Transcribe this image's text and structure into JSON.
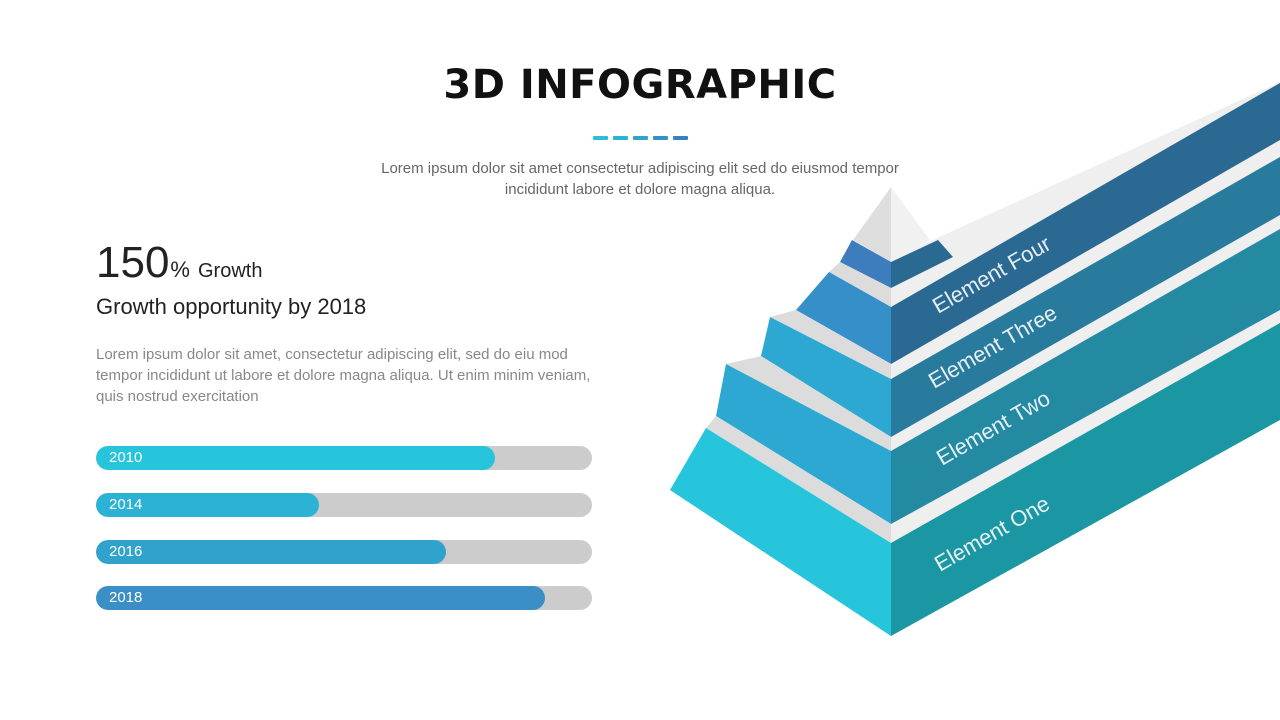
{
  "title": "3D INFOGRAPHIC",
  "subtitle_line1": "Lorem ipsum dolor sit amet consectetur adipiscing elit sed do eiusmod tempor",
  "subtitle_line2": "incididunt labore et dolore magna aliqua.",
  "stat": {
    "value": "150",
    "unit": "%",
    "label": "Growth"
  },
  "heading": "Growth opportunity by 2018",
  "body_text": "Lorem ipsum dolor sit amet, consectetur adipiscing elit, sed do eiu mod tempor incididunt ut labore et dolore magna aliqua. Ut enim minim veniam, quis nostrud exercitation",
  "bars": [
    {
      "year": "2010",
      "value": 0.805,
      "color": "#26C5DB"
    },
    {
      "year": "2014",
      "value": 0.45,
      "color": "#2BB2D5"
    },
    {
      "year": "2016",
      "value": 0.705,
      "color": "#2FA3CB"
    },
    {
      "year": "2018",
      "value": 0.905,
      "color": "#3A8FC6"
    }
  ],
  "elements": [
    {
      "label": "Element Four",
      "band_color": "#2A6A92",
      "left_color": "#3D7DBD"
    },
    {
      "label": "Element Three",
      "band_color": "#287B9C",
      "left_color": "#358FC8"
    },
    {
      "label": "Element Two",
      "band_color": "#238AA2",
      "left_color": "#2DA8D2"
    },
    {
      "label": "Element One",
      "band_color": "#1B97A3",
      "left_color": "#26C5DB"
    }
  ],
  "colors": {
    "dashes": [
      "#2BBFD9",
      "#2BB2D5",
      "#2FA3CB",
      "#3292C6",
      "#3A80BE"
    ],
    "separator": "#DCDCDC",
    "separator_light": "#EFEFEF",
    "apex_left": "#DEDEDE",
    "apex_right": "#F1F1F1"
  }
}
